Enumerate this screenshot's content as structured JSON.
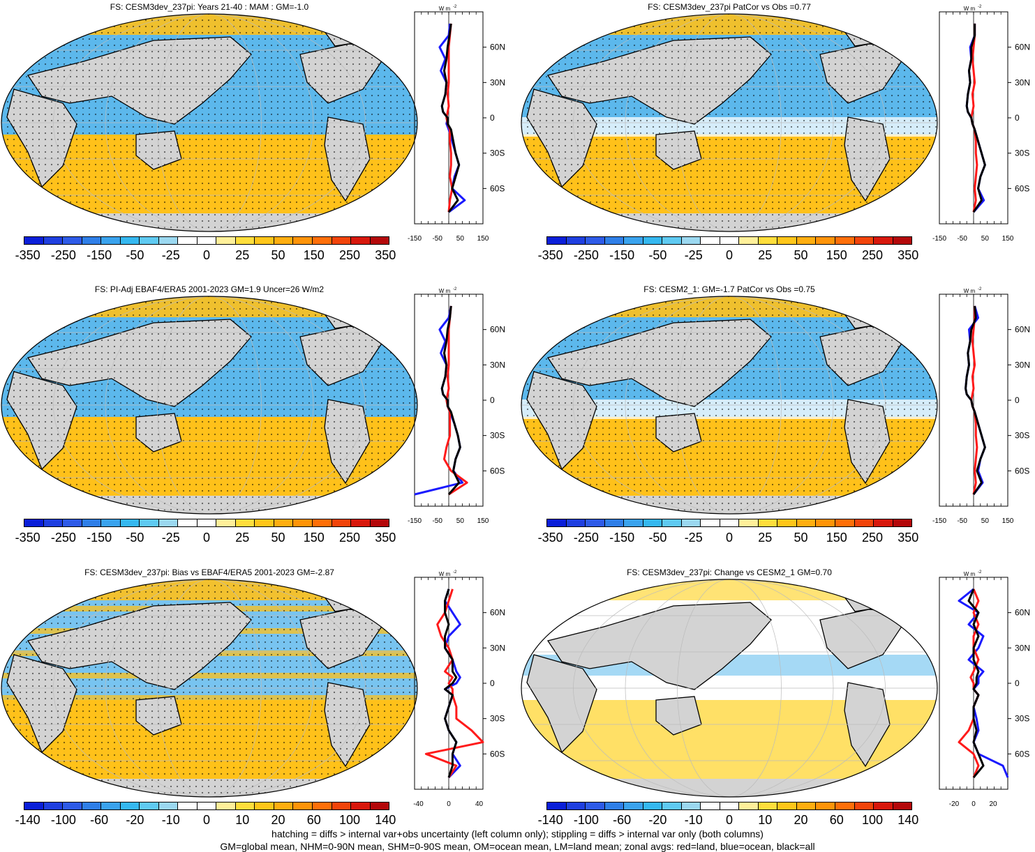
{
  "colorbar_colors": [
    "#0a1fd9",
    "#1f3fe0",
    "#2e5be8",
    "#2f7fe8",
    "#3aa3ee",
    "#35b8f0",
    "#5fcaf2",
    "#9bd8f0",
    "#ffffff",
    "#ffffff",
    "#fff09a",
    "#ffde3c",
    "#ffc61a",
    "#ffae10",
    "#ff9408",
    "#ff6f08",
    "#f2440a",
    "#d8180c",
    "#b4080a"
  ],
  "colors": {
    "ocean_neg": "#5cb8ec",
    "ocean_neg2": "#9bd0f2",
    "ocean_pos": "#ffc11a",
    "ocean_pos2": "#ffe066",
    "land": "#d3d3d3",
    "zonal_land": "#ff1a1a",
    "zonal_ocean": "#1a1aff",
    "zonal_all": "#000000"
  },
  "panels": [
    {
      "title": "FS: CESM3dev_237pi: Years 21-40 : MAM : GM=-1.0",
      "cbar_labels": [
        "-350",
        "-250",
        "-150",
        "-50",
        "-25",
        "0",
        "25",
        "50",
        "150",
        "250",
        "350"
      ],
      "zonal_units": "W m",
      "zonal_x_ticks": [
        "-150",
        "-50",
        "50",
        "150"
      ],
      "zonal_lat_ticks": [
        "60N",
        "30N",
        "0",
        "30S",
        "60S"
      ]
    },
    {
      "title": "FS: CESM3dev_237pi PatCor vs Obs =0.77",
      "cbar_labels": [
        "-350",
        "-250",
        "-150",
        "-50",
        "-25",
        "0",
        "25",
        "50",
        "150",
        "250",
        "350"
      ],
      "zonal_units": "W m",
      "zonal_x_ticks": [
        "-150",
        "-50",
        "50",
        "150"
      ],
      "zonal_lat_ticks": [
        "60N",
        "30N",
        "0",
        "30S",
        "60S"
      ]
    },
    {
      "title": "FS: PI-Adj EBAF4/ERA5 2001-2023 GM=1.9 Uncer=26 W/m2",
      "cbar_labels": [
        "-350",
        "-250",
        "-150",
        "-50",
        "-25",
        "0",
        "25",
        "50",
        "150",
        "250",
        "350"
      ],
      "zonal_units": "W m",
      "zonal_x_ticks": [
        "-150",
        "-50",
        "50",
        "150"
      ],
      "zonal_lat_ticks": [
        "60N",
        "30N",
        "0",
        "30S",
        "60S"
      ]
    },
    {
      "title": "FS: CESM2_1: GM=-1.7 PatCor vs Obs =0.75",
      "cbar_labels": [
        "-350",
        "-250",
        "-150",
        "-50",
        "-25",
        "0",
        "25",
        "50",
        "150",
        "250",
        "350"
      ],
      "zonal_units": "W m",
      "zonal_x_ticks": [
        "-150",
        "-50",
        "50",
        "150"
      ],
      "zonal_lat_ticks": [
        "60N",
        "30N",
        "0",
        "30S",
        "60S"
      ]
    },
    {
      "title": "FS: CESM3dev_237pi: Bias vs EBAF4/ERA5 2001-2023 GM=-2.87",
      "cbar_labels": [
        "-140",
        "-100",
        "-60",
        "-20",
        "-10",
        "0",
        "10",
        "20",
        "60",
        "100",
        "140"
      ],
      "zonal_units": "W m",
      "zonal_x_ticks": [
        "-40",
        "0",
        "40"
      ],
      "zonal_lat_ticks": [
        "60N",
        "30N",
        "0",
        "30S",
        "60S"
      ]
    },
    {
      "title": "FS: CESM3dev_237pi: Change vs CESM2_1 GM=0.70",
      "cbar_labels": [
        "-140",
        "-100",
        "-60",
        "-20",
        "-10",
        "0",
        "10",
        "20",
        "60",
        "100",
        "140"
      ],
      "zonal_units": "W m",
      "zonal_x_ticks": [
        "-20",
        "0",
        "20"
      ],
      "zonal_lat_ticks": [
        "60N",
        "30N",
        "0",
        "30S",
        "60S"
      ]
    }
  ],
  "footer": {
    "line1": "hatching = diffs > internal var+obs uncertainty (left column only); stippling = diffs > internal var only (both columns)",
    "line2": "GM=global mean, NHM=0-90N mean, SHM=0-90S mean, OM=ocean mean, LM=land mean; zonal avgs: red=land, blue=ocean, black=all"
  },
  "chart_data": [
    {
      "type": "heatmap",
      "title": "FS: CESM3dev_237pi: Years 21-40 : MAM : GM=-1.0",
      "legend_levels": [
        -350,
        -300,
        -250,
        -200,
        -150,
        -100,
        -50,
        -35,
        -25,
        -15,
        0,
        15,
        25,
        35,
        50,
        100,
        150,
        200,
        250,
        300,
        350
      ],
      "zonal": {
        "ylim": [
          -90,
          90
        ],
        "xlim": [
          -150,
          150
        ],
        "lat": [
          80,
          70,
          60,
          50,
          40,
          30,
          20,
          10,
          5,
          0,
          -5,
          -10,
          -20,
          -30,
          -40,
          -50,
          -60,
          -70,
          -80
        ],
        "ocean": [
          5,
          0,
          -40,
          -15,
          -35,
          -10,
          -15,
          -30,
          -25,
          -5,
          -10,
          0,
          15,
          30,
          45,
          25,
          15,
          70,
          0
        ],
        "land": [
          10,
          5,
          0,
          0,
          0,
          0,
          -5,
          0,
          -5,
          -10,
          -5,
          5,
          5,
          10,
          10,
          5,
          15,
          5,
          0
        ],
        "all": [
          10,
          3,
          -5,
          -10,
          -20,
          -10,
          -15,
          -30,
          -25,
          -5,
          -5,
          10,
          20,
          30,
          45,
          30,
          15,
          40,
          0
        ]
      }
    },
    {
      "type": "heatmap",
      "title": "FS: CESM3dev_237pi PatCor vs Obs =0.77",
      "legend_levels": [
        -350,
        -300,
        -250,
        -200,
        -150,
        -100,
        -50,
        -35,
        -25,
        -15,
        0,
        15,
        25,
        35,
        50,
        100,
        150,
        200,
        250,
        300,
        350
      ],
      "zonal": {
        "ylim": [
          -90,
          90
        ],
        "xlim": [
          -150,
          150
        ],
        "lat": [
          80,
          70,
          60,
          50,
          40,
          30,
          20,
          10,
          5,
          0,
          -5,
          -10,
          -20,
          -30,
          -40,
          -50,
          -60,
          -70,
          -80
        ],
        "ocean": [
          5,
          5,
          -15,
          -10,
          -20,
          -15,
          -25,
          -30,
          -25,
          -10,
          -5,
          5,
          20,
          35,
          50,
          30,
          20,
          45,
          0
        ],
        "land": [
          5,
          5,
          0,
          -5,
          0,
          5,
          -5,
          0,
          -5,
          -10,
          -5,
          5,
          10,
          10,
          15,
          10,
          5,
          10,
          0
        ],
        "all": [
          5,
          5,
          -10,
          -10,
          -20,
          -15,
          -25,
          -30,
          -25,
          -10,
          -5,
          5,
          20,
          35,
          50,
          30,
          20,
          35,
          0
        ]
      }
    },
    {
      "type": "heatmap",
      "title": "FS: PI-Adj EBAF4/ERA5 2001-2023 GM=1.9 Uncer=26 W/m2",
      "legend_levels": [
        -350,
        -300,
        -250,
        -200,
        -150,
        -100,
        -50,
        -35,
        -25,
        -15,
        0,
        15,
        25,
        35,
        50,
        100,
        150,
        200,
        250,
        300,
        350
      ],
      "zonal": {
        "ylim": [
          -90,
          90
        ],
        "xlim": [
          -150,
          150
        ],
        "lat": [
          80,
          70,
          60,
          50,
          40,
          30,
          20,
          10,
          5,
          0,
          -5,
          -10,
          -20,
          -30,
          -40,
          -50,
          -60,
          -70,
          -80
        ],
        "ocean": [
          10,
          0,
          -40,
          -15,
          -35,
          -10,
          -15,
          -30,
          -25,
          -5,
          -5,
          5,
          25,
          40,
          50,
          30,
          20,
          60,
          -150
        ],
        "land": [
          10,
          5,
          0,
          0,
          0,
          0,
          -5,
          0,
          -5,
          -10,
          -5,
          5,
          5,
          5,
          -10,
          -20,
          10,
          80,
          0
        ],
        "all": [
          10,
          5,
          -5,
          -10,
          -20,
          -10,
          -15,
          -30,
          -25,
          -5,
          -5,
          10,
          25,
          40,
          50,
          30,
          20,
          45,
          0
        ]
      }
    },
    {
      "type": "heatmap",
      "title": "FS: CESM2_1: GM=-1.7 PatCor vs Obs =0.75",
      "legend_levels": [
        -350,
        -300,
        -250,
        -200,
        -150,
        -100,
        -50,
        -35,
        -25,
        -15,
        0,
        15,
        25,
        35,
        50,
        100,
        150,
        200,
        250,
        300,
        350
      ],
      "zonal": {
        "ylim": [
          -90,
          90
        ],
        "xlim": [
          -150,
          150
        ],
        "lat": [
          80,
          70,
          60,
          50,
          40,
          30,
          20,
          10,
          5,
          0,
          -5,
          -10,
          -20,
          -30,
          -40,
          -50,
          -60,
          -70,
          -80
        ],
        "ocean": [
          5,
          20,
          -20,
          -15,
          -25,
          -20,
          -30,
          -35,
          -30,
          -10,
          -5,
          5,
          20,
          35,
          50,
          30,
          20,
          40,
          0
        ],
        "land": [
          5,
          5,
          0,
          -5,
          0,
          5,
          -5,
          0,
          -5,
          -10,
          -5,
          5,
          10,
          10,
          15,
          10,
          5,
          10,
          0
        ],
        "all": [
          5,
          10,
          -10,
          -15,
          -25,
          -20,
          -30,
          -35,
          -30,
          -10,
          -5,
          5,
          20,
          35,
          50,
          30,
          15,
          35,
          0
        ]
      }
    },
    {
      "type": "heatmap",
      "title": "FS: CESM3dev_237pi: Bias vs EBAF4/ERA5 2001-2023 GM=-2.87",
      "legend_levels": [
        -140,
        -120,
        -100,
        -80,
        -60,
        -40,
        -20,
        -15,
        -10,
        -5,
        0,
        5,
        10,
        15,
        20,
        40,
        60,
        80,
        100,
        120,
        140
      ],
      "zonal": {
        "ylim": [
          -90,
          90
        ],
        "xlim": [
          -45,
          45
        ],
        "lat": [
          80,
          70,
          60,
          50,
          40,
          30,
          20,
          10,
          5,
          0,
          -5,
          -10,
          -20,
          -30,
          -40,
          -50,
          -60,
          -70,
          -80
        ],
        "ocean": [
          0,
          -5,
          5,
          15,
          0,
          -5,
          5,
          10,
          15,
          10,
          -5,
          5,
          0,
          -5,
          0,
          10,
          5,
          15,
          0
        ],
        "land": [
          5,
          0,
          -5,
          -15,
          -10,
          0,
          5,
          -5,
          5,
          0,
          5,
          5,
          10,
          10,
          30,
          45,
          -30,
          10,
          0
        ],
        "all": [
          0,
          -5,
          -5,
          0,
          -5,
          -5,
          5,
          5,
          10,
          5,
          -5,
          5,
          0,
          -5,
          0,
          10,
          5,
          5,
          0
        ]
      }
    },
    {
      "type": "heatmap",
      "title": "FS: CESM3dev_237pi: Change vs CESM2_1 GM=0.70",
      "legend_levels": [
        -140,
        -120,
        -100,
        -80,
        -60,
        -40,
        -20,
        -15,
        -10,
        -5,
        0,
        5,
        10,
        15,
        20,
        40,
        60,
        80,
        100,
        120,
        140
      ],
      "zonal": {
        "ylim": [
          -90,
          90
        ],
        "xlim": [
          -35,
          35
        ],
        "lat": [
          80,
          70,
          60,
          50,
          40,
          30,
          20,
          10,
          5,
          0,
          -5,
          -10,
          -20,
          -30,
          -40,
          -50,
          -60,
          -70,
          -80
        ],
        "ocean": [
          0,
          -15,
          5,
          -5,
          10,
          5,
          -5,
          10,
          5,
          5,
          0,
          5,
          0,
          3,
          5,
          0,
          5,
          30,
          40
        ],
        "land": [
          0,
          5,
          0,
          5,
          0,
          0,
          5,
          0,
          -3,
          0,
          0,
          5,
          0,
          0,
          -5,
          -15,
          0,
          5,
          0
        ],
        "all": [
          0,
          -5,
          5,
          0,
          5,
          0,
          0,
          5,
          3,
          3,
          0,
          5,
          0,
          0,
          3,
          0,
          5,
          10,
          0
        ]
      }
    }
  ]
}
